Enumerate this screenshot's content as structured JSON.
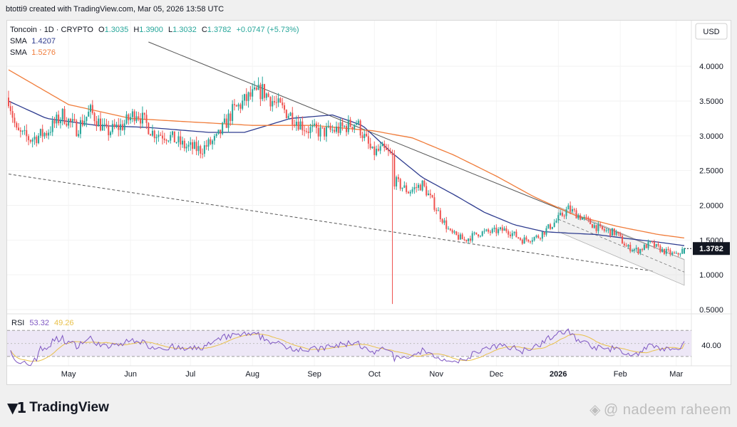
{
  "header": {
    "caption": "btotti9 created with TradingView.com, Mar 05, 2026 13:58 UTC"
  },
  "legend": {
    "symbol": "Toncoin · 1D · CRYPTO",
    "open_label": "O",
    "open": "1.3035",
    "high_label": "H",
    "high": "1.3900",
    "low_label": "L",
    "low": "1.3032",
    "close_label": "C",
    "close": "1.3782",
    "change": "+0.0747 (+5.73%)",
    "sma1_label": "SMA",
    "sma1_value": "1.4207",
    "sma2_label": "SMA",
    "sma2_value": "1.5276"
  },
  "price_axis": {
    "currency": "USD",
    "current_price": "1.3782"
  },
  "rsi": {
    "label": "RSI",
    "value": "53.32",
    "ma_value": "49.26",
    "axis_label": "40.00"
  },
  "footer": {
    "brand": "TradingView",
    "watermark": "@ nadeem raheem"
  },
  "colors": {
    "up": "#26a69a",
    "down": "#ef5350",
    "sma_fast": "#2e3c8f",
    "sma_slow": "#f07c3a",
    "rsi_line": "#7e57c2",
    "rsi_ma": "#e9c14a",
    "rsi_band": "#ede7f6",
    "trendline": "#555555"
  },
  "chart_data": {
    "type": "candlestick",
    "title": "Toncoin · 1D · CRYPTO",
    "ylabel": "USD",
    "y_ticks": [
      4.0,
      3.5,
      3.0,
      2.5,
      2.0,
      1.5,
      1.0,
      0.5
    ],
    "y_tick_labels": [
      "4.0000",
      "3.5000",
      "3.0000",
      "2.5000",
      "2.0000",
      "1.5000",
      "1.0000",
      "0.5000"
    ],
    "ylim": [
      0.5,
      4.35
    ],
    "x_tick_labels": [
      "May",
      "Jun",
      "Jul",
      "Aug",
      "Sep",
      "Oct",
      "Nov",
      "Dec",
      "2026",
      "Feb",
      "Mar"
    ],
    "x_tick_dates": [
      "2025-05-01",
      "2025-06-01",
      "2025-07-01",
      "2025-08-01",
      "2025-09-01",
      "2025-10-01",
      "2025-11-01",
      "2025-12-01",
      "2026-01-01",
      "2026-02-01",
      "2026-03-01"
    ],
    "date_range": [
      "2025-04-01",
      "2026-03-05"
    ],
    "price_anchors": {
      "dates": [
        "2025-04-01",
        "2025-04-05",
        "2025-04-12",
        "2025-04-20",
        "2025-04-28",
        "2025-05-05",
        "2025-05-12",
        "2025-05-20",
        "2025-05-28",
        "2025-06-04",
        "2025-06-12",
        "2025-06-20",
        "2025-06-28",
        "2025-07-06",
        "2025-07-14",
        "2025-07-22",
        "2025-07-30",
        "2025-08-06",
        "2025-08-13",
        "2025-08-20",
        "2025-08-28",
        "2025-09-05",
        "2025-09-14",
        "2025-09-22",
        "2025-09-30",
        "2025-10-05",
        "2025-10-10",
        "2025-10-11",
        "2025-10-18",
        "2025-10-25",
        "2025-11-01",
        "2025-11-08",
        "2025-11-15",
        "2025-11-22",
        "2025-11-29",
        "2025-12-06",
        "2025-12-14",
        "2025-12-22",
        "2025-12-30",
        "2026-01-06",
        "2026-01-14",
        "2026-01-22",
        "2026-01-30",
        "2026-02-04",
        "2026-02-10",
        "2026-02-16",
        "2026-02-22",
        "2026-03-01",
        "2026-03-05"
      ],
      "close": [
        3.55,
        3.05,
        2.95,
        3.05,
        3.3,
        3.1,
        3.35,
        3.05,
        3.15,
        3.35,
        3.05,
        3.0,
        2.85,
        2.8,
        2.95,
        3.35,
        3.55,
        3.65,
        3.45,
        3.3,
        3.1,
        3.05,
        3.1,
        3.2,
        2.75,
        2.8,
        2.7,
        2.35,
        2.2,
        2.3,
        1.95,
        1.6,
        1.5,
        1.6,
        1.62,
        1.65,
        1.5,
        1.55,
        1.75,
        1.95,
        1.8,
        1.65,
        1.6,
        1.4,
        1.35,
        1.45,
        1.35,
        1.28,
        1.378
      ]
    },
    "series": [
      {
        "name": "SMA",
        "last_value": 1.4207,
        "dates": [
          "2025-04-01",
          "2025-04-20",
          "2025-05-15",
          "2025-06-10",
          "2025-07-10",
          "2025-07-28",
          "2025-08-20",
          "2025-09-10",
          "2025-09-25",
          "2025-10-10",
          "2025-10-25",
          "2025-11-10",
          "2025-11-25",
          "2025-12-10",
          "2025-12-25",
          "2026-01-06",
          "2026-01-20",
          "2026-02-05",
          "2026-02-20",
          "2026-03-05"
        ],
        "values": [
          3.5,
          3.25,
          3.15,
          3.12,
          3.05,
          3.05,
          3.25,
          3.3,
          3.15,
          2.75,
          2.4,
          2.15,
          1.9,
          1.72,
          1.62,
          1.6,
          1.58,
          1.52,
          1.47,
          1.42
        ]
      },
      {
        "name": "SMA",
        "last_value": 1.5276,
        "dates": [
          "2025-04-01",
          "2025-05-01",
          "2025-06-01",
          "2025-07-01",
          "2025-08-01",
          "2025-09-01",
          "2025-10-01",
          "2025-10-20",
          "2025-11-10",
          "2025-12-01",
          "2025-12-20",
          "2026-01-10",
          "2026-01-30",
          "2026-02-20",
          "2026-03-05"
        ],
        "values": [
          3.95,
          3.45,
          3.25,
          3.2,
          3.15,
          3.15,
          3.07,
          2.97,
          2.72,
          2.42,
          2.12,
          1.85,
          1.7,
          1.58,
          1.53
        ]
      }
    ],
    "rsi": {
      "value": 53.32,
      "ma": 49.26,
      "band": [
        30,
        70
      ],
      "midline": 50
    }
  }
}
